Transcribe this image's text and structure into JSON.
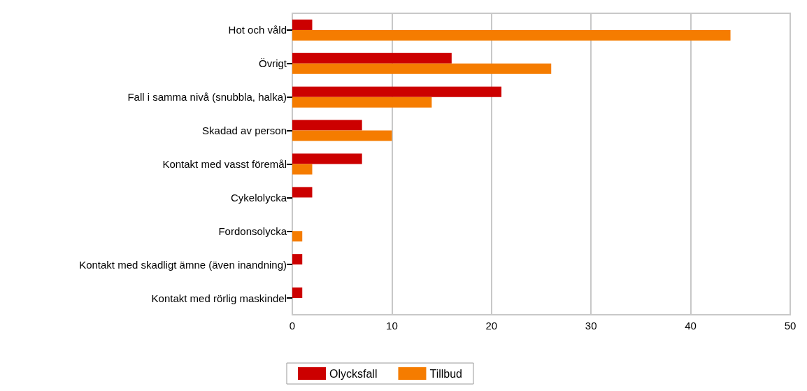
{
  "chart_data": {
    "type": "bar",
    "orientation": "horizontal",
    "categories": [
      "Hot och våld",
      "Övrigt",
      "Fall i samma nivå (snubbla, halka)",
      "Skadad av person",
      "Kontakt med vasst föremål",
      "Cykelolycka",
      "Fordonsolycka",
      "Kontakt med skadligt ämne (även inandning)",
      "Kontakt med rörlig maskindel"
    ],
    "series": [
      {
        "name": "Olycksfall",
        "color": "#cc0000",
        "values": [
          2,
          16,
          21,
          7,
          7,
          2,
          null,
          1,
          1
        ]
      },
      {
        "name": "Tillbud",
        "color": "#f57c00",
        "values": [
          44,
          26,
          14,
          10,
          2,
          null,
          1,
          null,
          null
        ]
      }
    ],
    "xlim": [
      0,
      50
    ],
    "xticks": [
      0,
      10,
      20,
      30,
      40,
      50
    ],
    "grid": "x",
    "legend": "bottom"
  }
}
